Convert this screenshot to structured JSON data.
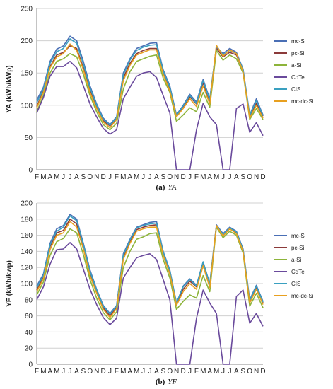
{
  "chart_data": [
    {
      "type": "line",
      "panel_label": "(a)",
      "caption_symbol": "YA",
      "ylabel": "YA (kWh/kWp)",
      "ylim": [
        0,
        250
      ],
      "yticks": [
        0,
        50,
        100,
        150,
        200,
        250
      ],
      "x": [
        "F",
        "M",
        "A",
        "M",
        "J",
        "J",
        "A",
        "S",
        "O",
        "N",
        "D",
        "J",
        "F",
        "M",
        "A",
        "M",
        "J",
        "J",
        "A",
        "S",
        "O",
        "N",
        "D",
        "J",
        "F",
        "M",
        "A",
        "M",
        "J",
        "J",
        "A",
        "S",
        "O",
        "N",
        "D"
      ],
      "legend_position": "right",
      "series": [
        {
          "name": "mc-Si",
          "color": "#4a6fb5",
          "values": [
            108,
            128,
            168,
            187,
            192,
            207,
            200,
            168,
            130,
            102,
            80,
            70,
            82,
            150,
            172,
            188,
            192,
            196,
            197,
            155,
            130,
            85,
            100,
            117,
            105,
            140,
            110,
            190,
            180,
            188,
            182,
            156,
            85,
            110,
            85
          ]
        },
        {
          "name": "pc-Si",
          "color": "#8b3a3a",
          "values": [
            98,
            122,
            160,
            178,
            182,
            192,
            188,
            158,
            123,
            97,
            76,
            68,
            80,
            142,
            165,
            180,
            185,
            188,
            188,
            150,
            125,
            83,
            98,
            113,
            102,
            135,
            105,
            188,
            175,
            182,
            178,
            153,
            82,
            103,
            83
          ]
        },
        {
          "name": "a-Si",
          "color": "#8db43a",
          "values": [
            90,
            115,
            150,
            168,
            172,
            180,
            175,
            148,
            115,
            90,
            70,
            62,
            72,
            125,
            152,
            168,
            172,
            176,
            178,
            142,
            120,
            75,
            85,
            96,
            90,
            120,
            97,
            185,
            170,
            178,
            172,
            150,
            78,
            95,
            78
          ]
        },
        {
          "name": "CdTe",
          "color": "#6a4a9c",
          "values": [
            88,
            112,
            145,
            160,
            160,
            168,
            158,
            130,
            102,
            82,
            64,
            55,
            62,
            110,
            128,
            145,
            150,
            152,
            143,
            115,
            88,
            0,
            0,
            0,
            62,
            103,
            82,
            70,
            0,
            0,
            95,
            102,
            58,
            73,
            53
          ]
        },
        {
          "name": "CIS",
          "color": "#3aa0c0",
          "values": [
            104,
            125,
            165,
            183,
            188,
            203,
            196,
            164,
            127,
            100,
            78,
            69,
            81,
            147,
            170,
            185,
            190,
            193,
            194,
            153,
            128,
            84,
            99,
            115,
            103,
            138,
            108,
            192,
            178,
            185,
            180,
            155,
            84,
            107,
            84
          ]
        },
        {
          "name": "mc-dc-Si",
          "color": "#e8a020",
          "values": [
            96,
            120,
            158,
            175,
            180,
            195,
            185,
            155,
            120,
            95,
            74,
            65,
            78,
            138,
            162,
            178,
            182,
            186,
            186,
            148,
            122,
            82,
            95,
            110,
            98,
            130,
            102,
            193,
            176,
            186,
            180,
            152,
            80,
            100,
            80
          ]
        }
      ]
    },
    {
      "type": "line",
      "panel_label": "(b)",
      "caption_symbol": "YF",
      "ylabel": "YF (kWh/kwp)",
      "ylim": [
        0,
        200
      ],
      "yticks": [
        0,
        20,
        40,
        60,
        80,
        100,
        120,
        140,
        160,
        180,
        200
      ],
      "x": [
        "F",
        "M",
        "A",
        "M",
        "J",
        "J",
        "A",
        "S",
        "O",
        "N",
        "D",
        "J",
        "F",
        "M",
        "A",
        "M",
        "J",
        "J",
        "A",
        "S",
        "O",
        "N",
        "D",
        "J",
        "F",
        "M",
        "A",
        "M",
        "J",
        "J",
        "A",
        "S",
        "O",
        "N",
        "D"
      ],
      "legend_position": "right",
      "series": [
        {
          "name": "mc-Si",
          "color": "#4a6fb5",
          "values": [
            97,
            112,
            150,
            168,
            172,
            186,
            180,
            150,
            117,
            93,
            73,
            63,
            73,
            137,
            155,
            170,
            173,
            176,
            177,
            140,
            117,
            76,
            97,
            106,
            98,
            127,
            100,
            173,
            162,
            170,
            165,
            143,
            80,
            98,
            78
          ]
        },
        {
          "name": "pc-Si",
          "color": "#8b3a3a",
          "values": [
            92,
            108,
            146,
            163,
            166,
            180,
            174,
            146,
            113,
            90,
            70,
            60,
            71,
            133,
            152,
            167,
            170,
            172,
            173,
            137,
            114,
            75,
            93,
            103,
            96,
            126,
            97,
            172,
            160,
            168,
            163,
            140,
            78,
            96,
            76
          ]
        },
        {
          "name": "a-Si",
          "color": "#8db43a",
          "values": [
            86,
            102,
            135,
            152,
            156,
            168,
            163,
            136,
            105,
            82,
            64,
            55,
            65,
            120,
            140,
            155,
            158,
            162,
            163,
            130,
            107,
            68,
            78,
            86,
            82,
            110,
            90,
            170,
            157,
            165,
            160,
            138,
            72,
            88,
            70
          ]
        },
        {
          "name": "CdTe",
          "color": "#6a4a9c",
          "values": [
            80,
            96,
            124,
            142,
            143,
            151,
            143,
            118,
            93,
            74,
            58,
            49,
            57,
            107,
            120,
            132,
            135,
            137,
            130,
            105,
            80,
            0,
            0,
            0,
            57,
            92,
            76,
            63,
            0,
            0,
            84,
            92,
            51,
            63,
            47
          ]
        },
        {
          "name": "CIS",
          "color": "#3aa0c0",
          "values": [
            95,
            110,
            148,
            165,
            170,
            184,
            178,
            148,
            115,
            92,
            72,
            62,
            72,
            135,
            154,
            169,
            172,
            174,
            175,
            139,
            116,
            76,
            96,
            105,
            97,
            127,
            99,
            172,
            161,
            169,
            164,
            142,
            79,
            97,
            77
          ]
        },
        {
          "name": "mc-dc-Si",
          "color": "#e8a020",
          "values": [
            90,
            106,
            142,
            160,
            163,
            177,
            170,
            143,
            110,
            88,
            68,
            58,
            69,
            130,
            150,
            165,
            168,
            170,
            170,
            135,
            112,
            73,
            90,
            100,
            93,
            122,
            95,
            172,
            159,
            168,
            162,
            140,
            76,
            93,
            74
          ]
        }
      ]
    }
  ]
}
